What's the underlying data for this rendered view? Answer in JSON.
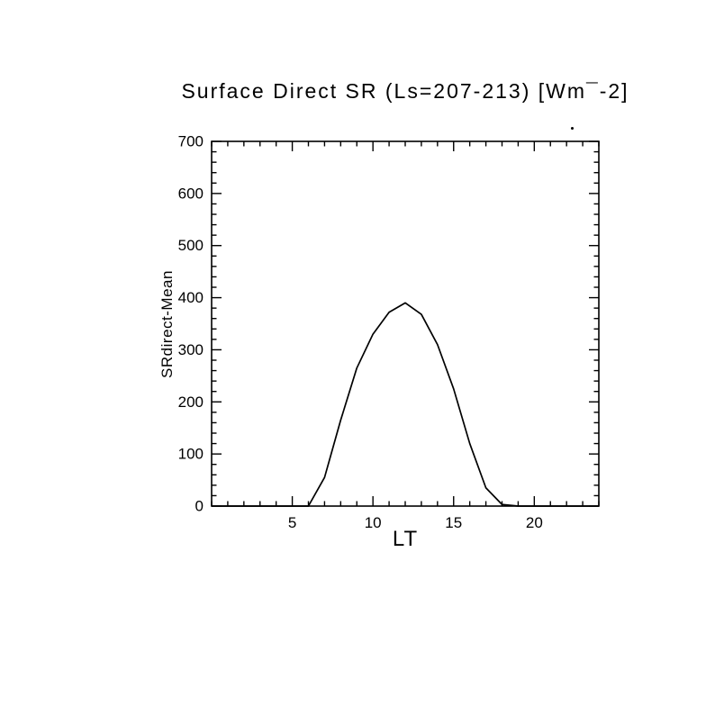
{
  "title": "Surface Direct SR (Ls=207-213) [Wm¯-2]",
  "marks": {
    "stray_dot": "."
  },
  "colors": {
    "ink": "#000000",
    "background": "#ffffff"
  },
  "chart_data": {
    "type": "line",
    "title": "Surface Direct SR (Ls=207-213) [Wm¯-2]",
    "xlabel": "LT",
    "ylabel": "SRdirect-Mean",
    "xlim": [
      0,
      24
    ],
    "ylim": [
      0,
      700
    ],
    "x_major_ticks": [
      5,
      10,
      15,
      20
    ],
    "y_major_ticks": [
      0,
      100,
      200,
      300,
      400,
      500,
      600,
      700
    ],
    "x_minor_step": 1,
    "y_minor_step": 20,
    "grid": false,
    "legend": false,
    "line_color": "#000000",
    "series_name": "SRdirect-Mean",
    "x": [
      0,
      1,
      2,
      3,
      4,
      5,
      6,
      7,
      8,
      9,
      10,
      11,
      12,
      13,
      14,
      15,
      16,
      17,
      18,
      19,
      20,
      21,
      22,
      23,
      24
    ],
    "y": [
      0,
      0,
      0,
      0,
      0,
      0,
      0,
      55,
      165,
      265,
      330,
      372,
      390,
      368,
      310,
      225,
      120,
      35,
      3,
      0,
      0,
      0,
      0,
      0,
      0
    ]
  }
}
